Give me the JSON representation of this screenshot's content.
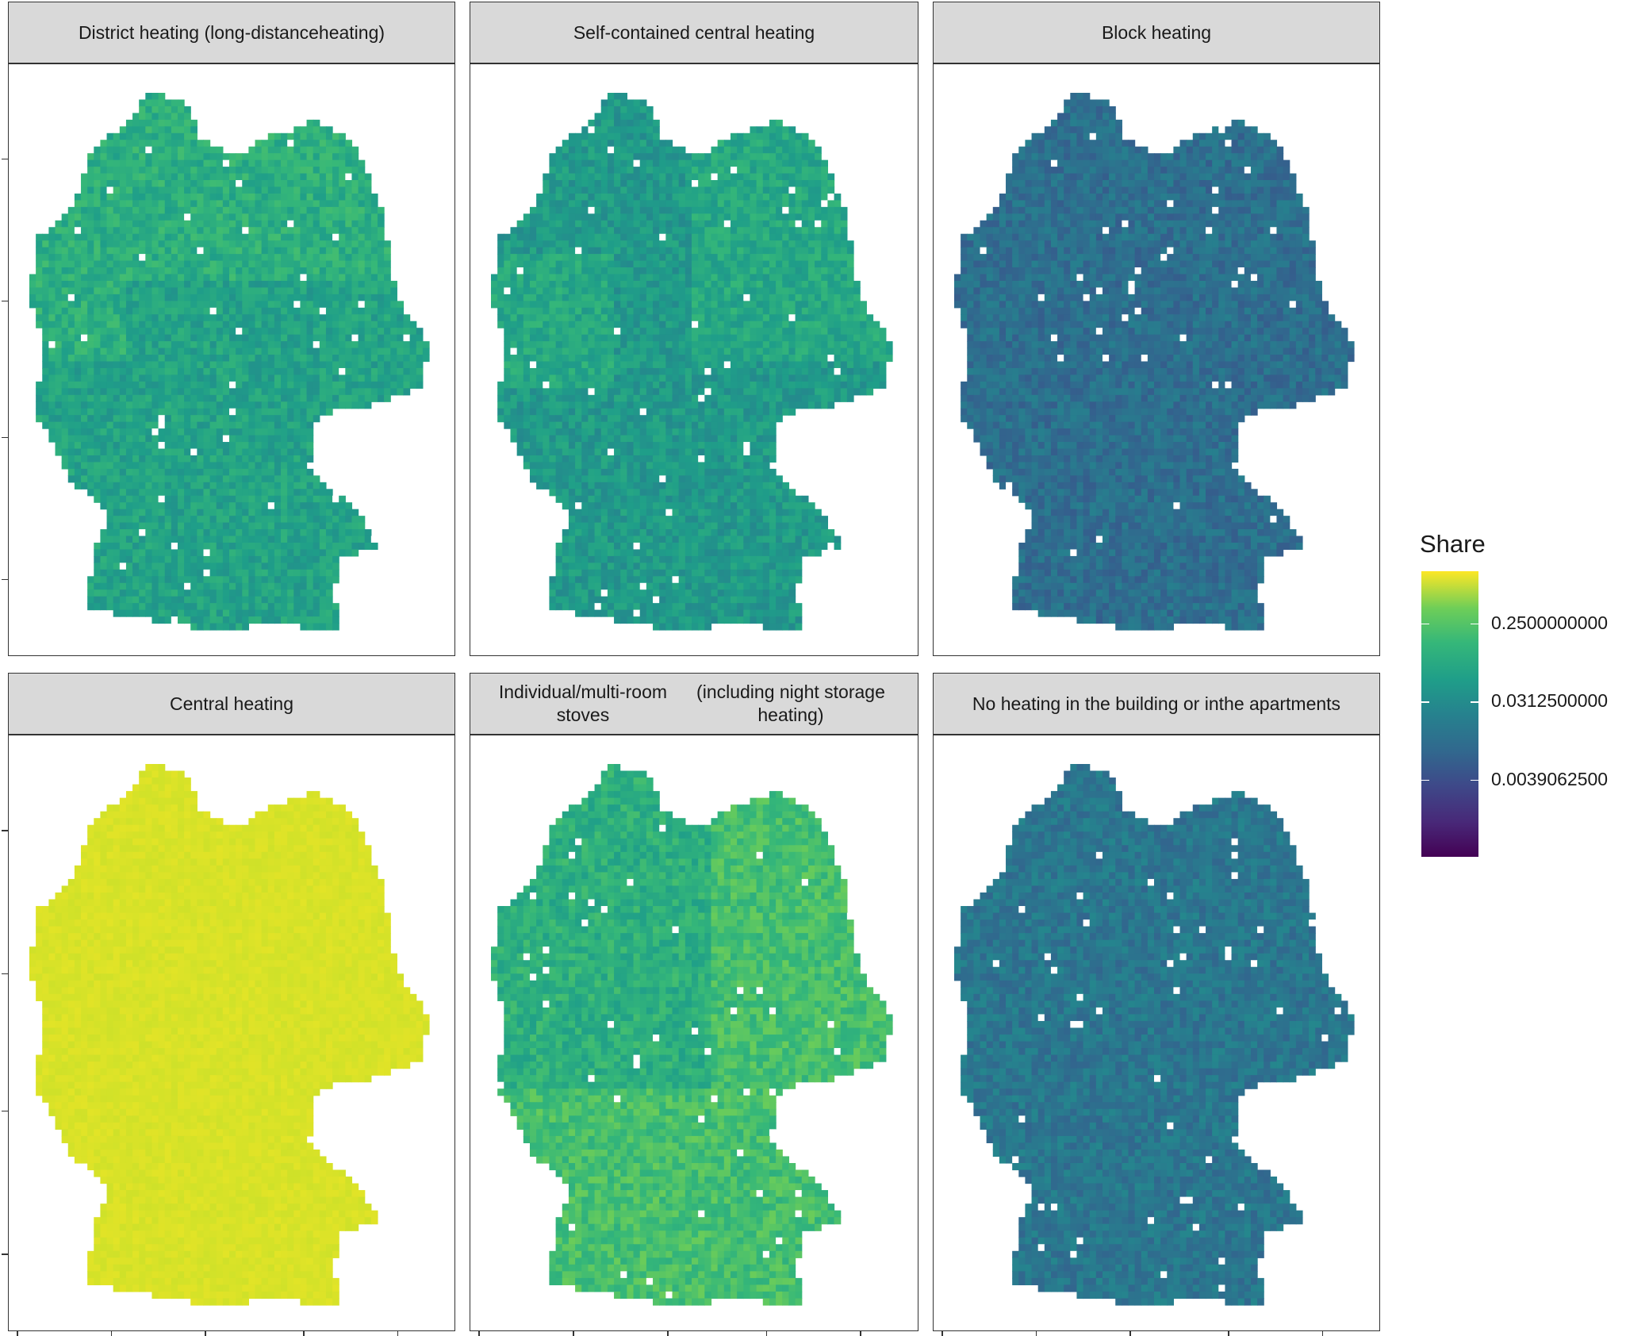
{
  "chart_data": {
    "type": "heatmap",
    "panels": [
      {
        "title": "District heating (long-distance heating)",
        "title_lines": [
          "District heating (long-distance",
          "heating)"
        ],
        "typical_share": 0.04,
        "hotspots": "north-east lighter, Ruhr lighter"
      },
      {
        "title": "Self-contained central heating",
        "title_lines": [
          "Self-contained central heating"
        ],
        "typical_share": 0.03,
        "hotspots": "west and north-east lighter"
      },
      {
        "title": "Block heating",
        "title_lines": [
          "Block heating"
        ],
        "typical_share": 0.008
      },
      {
        "title": "Central heating",
        "title_lines": [
          "Central heating"
        ],
        "typical_share": 0.65
      },
      {
        "title": "Individual/multi-room stoves (including night storage heating)",
        "title_lines": [
          "Individual/multi-room stoves",
          "(including night storage heating)"
        ],
        "typical_share": 0.06,
        "hotspots": "south and east lighter"
      },
      {
        "title": "No heating in the building or in the apartments",
        "title_lines": [
          "No heating in the building or in",
          "the apartments"
        ],
        "typical_share": 0.01
      }
    ],
    "legend": {
      "title": "Share",
      "scale": "log2",
      "colormap": "viridis",
      "breaks": [
        0.25,
        0.03125,
        0.00390625
      ],
      "break_labels": [
        "0.2500000000",
        "0.0312500000",
        "0.0039062500"
      ],
      "range": [
        0.0005,
        1.0
      ],
      "placement": "right"
    },
    "xlabel": "",
    "ylabel": ""
  },
  "colors": {
    "strip_fill": "#d9d9d9",
    "panel_border": "#333333",
    "missing_cell": "#ffffff"
  }
}
